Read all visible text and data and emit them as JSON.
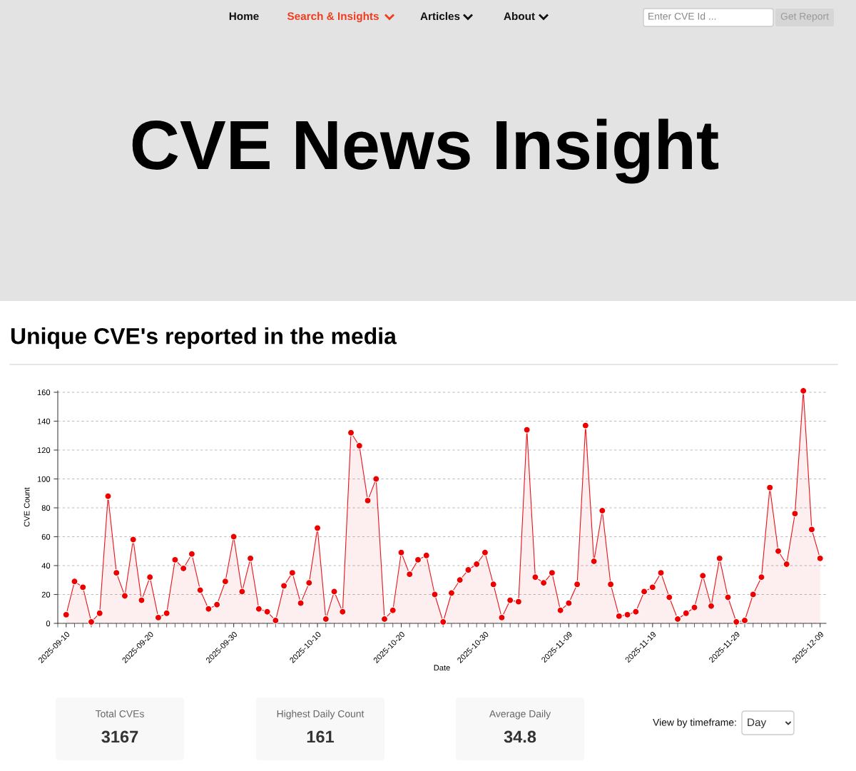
{
  "chart_data": {
    "type": "area",
    "title": "Unique CVE's reported in the media",
    "xlabel": "Date",
    "ylabel": "CVE Count",
    "x": [
      "2025-09-10",
      "2025-09-11",
      "2025-09-12",
      "2025-09-13",
      "2025-09-14",
      "2025-09-15",
      "2025-09-16",
      "2025-09-17",
      "2025-09-18",
      "2025-09-19",
      "2025-09-20",
      "2025-09-21",
      "2025-09-22",
      "2025-09-23",
      "2025-09-24",
      "2025-09-25",
      "2025-09-26",
      "2025-09-27",
      "2025-09-28",
      "2025-09-29",
      "2025-09-30",
      "2025-10-01",
      "2025-10-02",
      "2025-10-03",
      "2025-10-04",
      "2025-10-05",
      "2025-10-06",
      "2025-10-07",
      "2025-10-08",
      "2025-10-09",
      "2025-10-10",
      "2025-10-11",
      "2025-10-12",
      "2025-10-13",
      "2025-10-14",
      "2025-10-15",
      "2025-10-16",
      "2025-10-17",
      "2025-10-18",
      "2025-10-19",
      "2025-10-20",
      "2025-10-21",
      "2025-10-22",
      "2025-10-23",
      "2025-10-24",
      "2025-10-25",
      "2025-10-26",
      "2025-10-27",
      "2025-10-28",
      "2025-10-29",
      "2025-10-30",
      "2025-10-31",
      "2025-11-01",
      "2025-11-02",
      "2025-11-03",
      "2025-11-04",
      "2025-11-05",
      "2025-11-06",
      "2025-11-07",
      "2025-11-08",
      "2025-11-09",
      "2025-11-10",
      "2025-11-11",
      "2025-11-12",
      "2025-11-13",
      "2025-11-14",
      "2025-11-15",
      "2025-11-16",
      "2025-11-17",
      "2025-11-18",
      "2025-11-19",
      "2025-11-20",
      "2025-11-21",
      "2025-11-22",
      "2025-11-23",
      "2025-11-24",
      "2025-11-25",
      "2025-11-26",
      "2025-11-27",
      "2025-11-28",
      "2025-11-29",
      "2025-11-30",
      "2025-12-01",
      "2025-12-02",
      "2025-12-03",
      "2025-12-04",
      "2025-12-05",
      "2025-12-06",
      "2025-12-07",
      "2025-12-08",
      "2025-12-09"
    ],
    "series": [
      {
        "color": "#e8151b",
        "values": [
          6,
          29,
          25,
          1,
          7,
          88,
          35,
          19,
          58,
          16,
          32,
          4,
          7,
          44,
          38,
          48,
          23,
          10,
          13,
          29,
          60,
          22,
          45,
          10,
          8,
          2,
          26,
          35,
          14,
          28,
          66,
          3,
          22,
          8,
          132,
          123,
          85,
          100,
          3,
          9,
          49,
          34,
          44,
          47,
          20,
          1,
          21,
          30,
          37,
          41,
          49,
          27,
          4,
          16,
          15,
          134,
          32,
          28,
          35,
          9,
          14,
          27,
          137,
          43,
          78,
          27,
          5,
          6,
          8,
          22,
          25,
          35,
          18,
          3,
          7,
          11,
          33,
          12,
          45,
          18,
          1,
          2,
          20,
          32,
          94,
          50,
          41,
          76,
          161,
          65,
          45
        ]
      }
    ],
    "xlim": [
      "2025-09-09",
      "2025-12-09T17:00"
    ],
    "xticks": [
      "2025-09-10",
      "2025-09-20",
      "2025-09-30",
      "2025-10-10",
      "2025-10-20",
      "2025-10-30",
      "2025-11-09",
      "2025-11-19",
      "2025-11-29",
      "2025-12-09"
    ],
    "ylim": [
      0,
      161
    ],
    "yticks": [
      0,
      20,
      40,
      60,
      80,
      100,
      120,
      140,
      160
    ],
    "grid": "y",
    "marker": "circle",
    "line_style": "solid",
    "annotations": [
      "Home",
      "Search & Insights",
      "Articles",
      "About",
      "Enter CVE Id ...",
      "Get Report",
      "CVE News Insight",
      "Total CVEs",
      "3167",
      "Highest Daily Count",
      "161",
      "Average Daily",
      "34.8",
      "View by timeframe:",
      "Day"
    ]
  }
}
